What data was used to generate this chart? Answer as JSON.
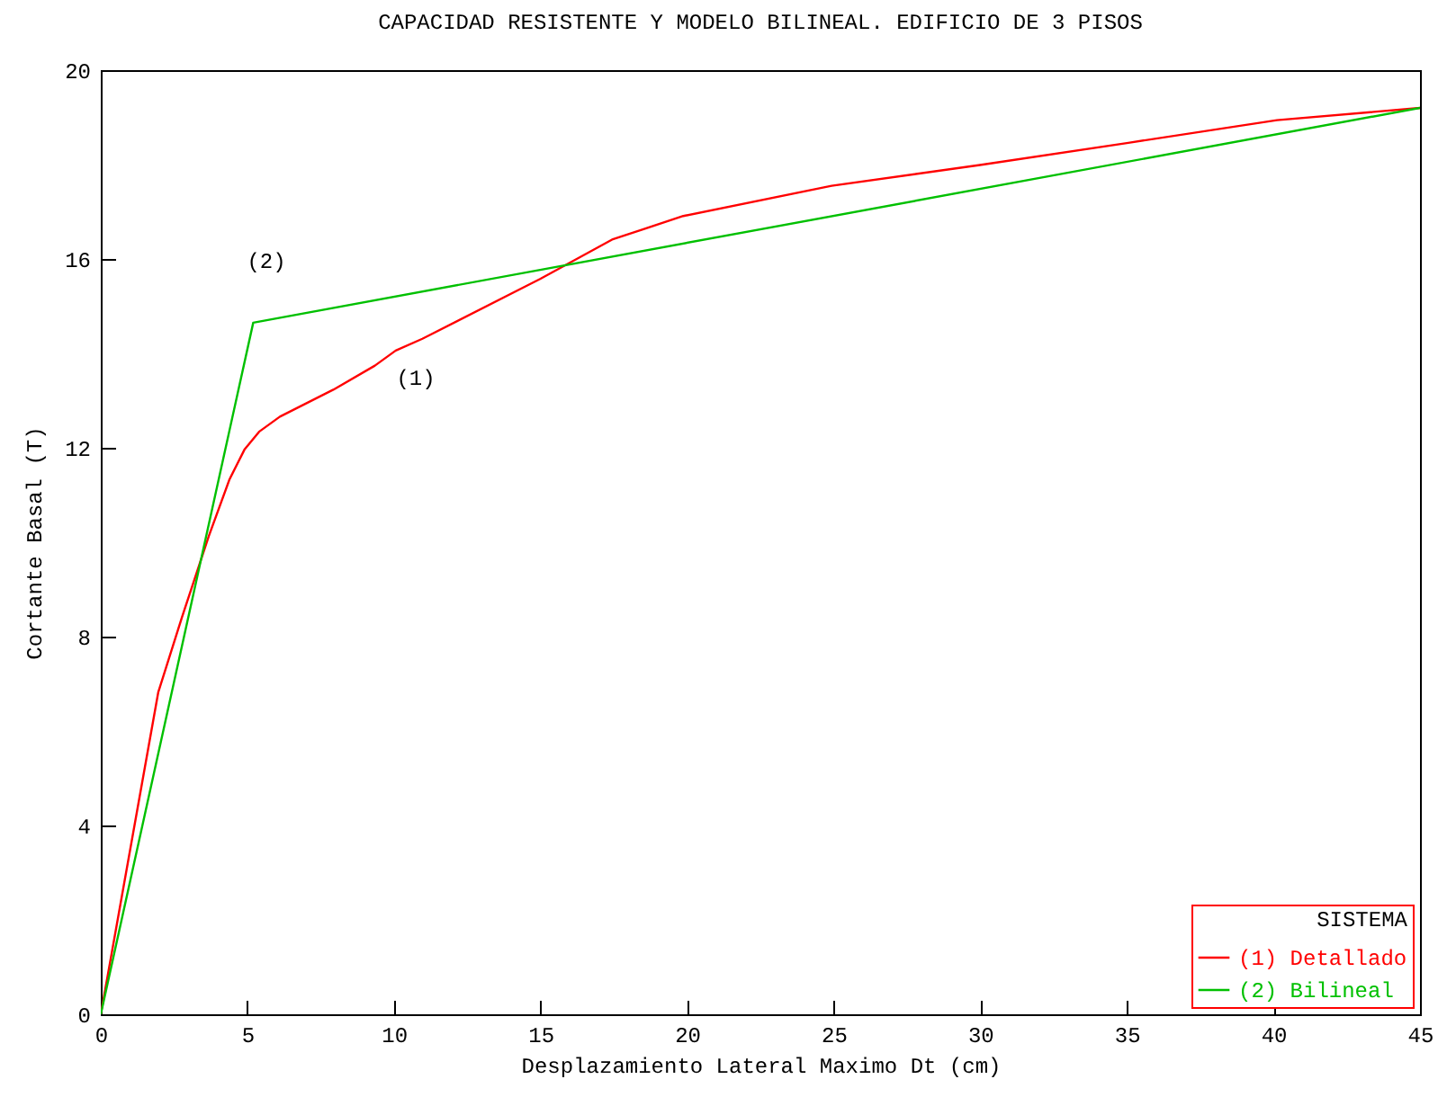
{
  "chart_data": {
    "type": "line",
    "title": "CAPACIDAD RESISTENTE Y MODELO BILINEAL. EDIFICIO DE 3 PISOS",
    "xlabel": "Desplazamiento Lateral Maximo Dt (cm)",
    "ylabel": "Cortante Basal (T)",
    "legend_title": "SISTEMA",
    "legend": "bottom right",
    "grid": false,
    "xlim": [
      0,
      45
    ],
    "xticks": [
      0,
      5,
      10,
      15,
      20,
      25,
      30,
      35,
      40,
      45
    ],
    "ylim": [
      0,
      20
    ],
    "yticks": [
      0,
      4,
      8,
      12,
      16,
      20
    ],
    "series": [
      {
        "name": "(1) Detallado",
        "color": "#ff0000",
        "x": [
          0,
          1.96,
          2.77,
          3.68,
          4.39,
          4.9,
          5.4,
          6.11,
          7.93,
          9.35,
          10.06,
          10.97,
          15.0,
          17.44,
          19.87,
          24.93,
          29.99,
          35.05,
          40.12,
          45
        ],
        "values": [
          0,
          6.82,
          8.41,
          10.12,
          11.33,
          11.96,
          12.34,
          12.66,
          13.23,
          13.74,
          14.06,
          14.31,
          15.58,
          16.41,
          16.91,
          17.55,
          17.99,
          18.46,
          18.94,
          19.2
        ]
      },
      {
        "name": "(2) Bilineal",
        "color": "#00c000",
        "x": [
          0,
          5.2,
          45
        ],
        "values": [
          0,
          14.65,
          19.2
        ]
      }
    ],
    "annotations": [
      "(2)",
      "(1)"
    ]
  }
}
